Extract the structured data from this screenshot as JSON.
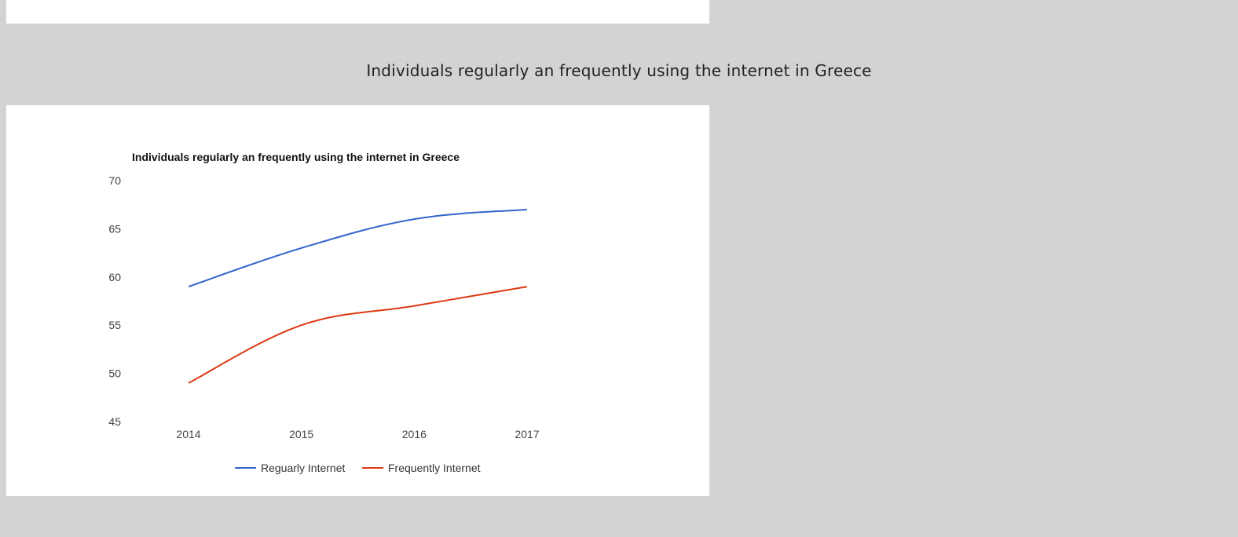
{
  "page": {
    "heading": "Individuals regularly an frequently using the internet in Greece"
  },
  "chart_data": {
    "type": "line",
    "title": "Individuals regularly an frequently using the internet in Greece",
    "xlabel": "",
    "ylabel": "",
    "categories": [
      "2014",
      "2015",
      "2016",
      "2017"
    ],
    "ylim": [
      45,
      70
    ],
    "yticks": [
      "45",
      "50",
      "55",
      "60",
      "65",
      "70"
    ],
    "grid": false,
    "legend_position": "bottom",
    "series": [
      {
        "name": "Reguarly Internet",
        "color": "#3366cc",
        "values": [
          59,
          63,
          66,
          67
        ]
      },
      {
        "name": "Frequently Internet",
        "color": "#dc3912",
        "values": [
          49,
          55,
          57,
          59
        ]
      }
    ]
  }
}
